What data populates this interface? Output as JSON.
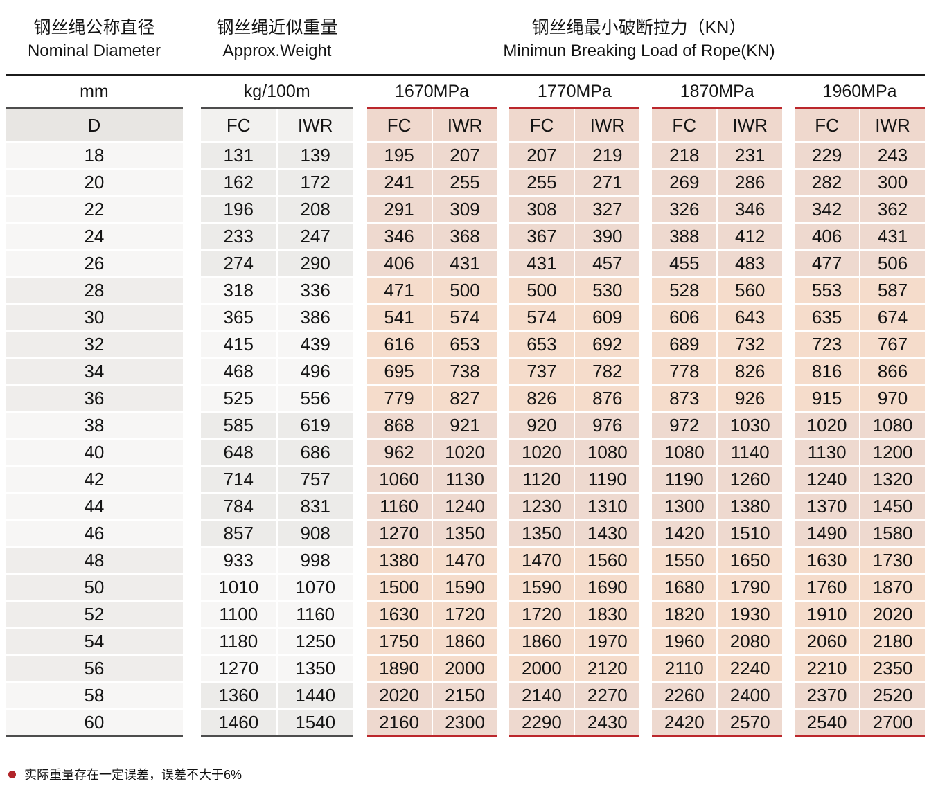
{
  "header": {
    "diameter": {
      "zh": "钢丝绳公称直径",
      "en": "Nominal Diameter",
      "unit": "mm",
      "sub": "D"
    },
    "weight": {
      "zh": "钢丝绳近似重量",
      "en": "Approx.Weight",
      "unit": "kg/100m"
    },
    "breaking": {
      "zh": "钢丝绳最小破断拉力（KN）",
      "en": "Minimun Breaking Load of Rope(KN)"
    },
    "fc": "FC",
    "iwr": "IWR",
    "mpa_groups": [
      "1670MPa",
      "1770MPa",
      "1870MPa",
      "1960MPa"
    ]
  },
  "footnote": {
    "text": "实际重量存在一定误差，误差不大于6%"
  },
  "colors": {
    "accent_red": "#bb272c",
    "dark_rule": "#1b1b1b",
    "gray_rule": "#4d4d4d",
    "salmon_cell": "#f5dccb",
    "salmon_cell_alt": "#eed9cf",
    "gray_cell": "#efedeb",
    "gray_cell_alt": "#f7f6f5",
    "d_header_bg": "#e8e6e3"
  },
  "chart_data": {
    "type": "table",
    "title": "钢丝绳最小破断拉力（KN） Minimun Breaking Load of Rope(KN)",
    "columns": [
      "D (mm)",
      "Weight FC (kg/100m)",
      "Weight IWR (kg/100m)",
      "1670MPa FC (KN)",
      "1670MPa IWR (KN)",
      "1770MPa FC (KN)",
      "1770MPa IWR (KN)",
      "1870MPa FC (KN)",
      "1870MPa IWR (KN)",
      "1960MPa FC (KN)",
      "1960MPa IWR (KN)"
    ],
    "rows": [
      [
        18,
        131,
        139,
        195,
        207,
        207,
        219,
        218,
        231,
        229,
        243
      ],
      [
        20,
        162,
        172,
        241,
        255,
        255,
        271,
        269,
        286,
        282,
        300
      ],
      [
        22,
        196,
        208,
        291,
        309,
        308,
        327,
        326,
        346,
        342,
        362
      ],
      [
        24,
        233,
        247,
        346,
        368,
        367,
        390,
        388,
        412,
        406,
        431
      ],
      [
        26,
        274,
        290,
        406,
        431,
        431,
        457,
        455,
        483,
        477,
        506
      ],
      [
        28,
        318,
        336,
        471,
        500,
        500,
        530,
        528,
        560,
        553,
        587
      ],
      [
        30,
        365,
        386,
        541,
        574,
        574,
        609,
        606,
        643,
        635,
        674
      ],
      [
        32,
        415,
        439,
        616,
        653,
        653,
        692,
        689,
        732,
        723,
        767
      ],
      [
        34,
        468,
        496,
        695,
        738,
        737,
        782,
        778,
        826,
        816,
        866
      ],
      [
        36,
        525,
        556,
        779,
        827,
        826,
        876,
        873,
        926,
        915,
        970
      ],
      [
        38,
        585,
        619,
        868,
        921,
        920,
        976,
        972,
        1030,
        1020,
        1080
      ],
      [
        40,
        648,
        686,
        962,
        1020,
        1020,
        1080,
        1080,
        1140,
        1130,
        1200
      ],
      [
        42,
        714,
        757,
        1060,
        1130,
        1120,
        1190,
        1190,
        1260,
        1240,
        1320
      ],
      [
        44,
        784,
        831,
        1160,
        1240,
        1230,
        1310,
        1300,
        1380,
        1370,
        1450
      ],
      [
        46,
        857,
        908,
        1270,
        1350,
        1350,
        1430,
        1420,
        1510,
        1490,
        1580
      ],
      [
        48,
        933,
        998,
        1380,
        1470,
        1470,
        1560,
        1550,
        1650,
        1630,
        1730
      ],
      [
        50,
        1010,
        1070,
        1500,
        1590,
        1590,
        1690,
        1680,
        1790,
        1760,
        1870
      ],
      [
        52,
        1100,
        1160,
        1630,
        1720,
        1720,
        1830,
        1820,
        1930,
        1910,
        2020
      ],
      [
        54,
        1180,
        1250,
        1750,
        1860,
        1860,
        1970,
        1960,
        2080,
        2060,
        2180
      ],
      [
        56,
        1270,
        1350,
        1890,
        2000,
        2000,
        2120,
        2110,
        2240,
        2210,
        2350
      ],
      [
        58,
        1360,
        1440,
        2020,
        2150,
        2140,
        2270,
        2260,
        2400,
        2370,
        2520
      ],
      [
        60,
        1460,
        1540,
        2160,
        2300,
        2290,
        2430,
        2420,
        2570,
        2540,
        2700
      ]
    ]
  }
}
